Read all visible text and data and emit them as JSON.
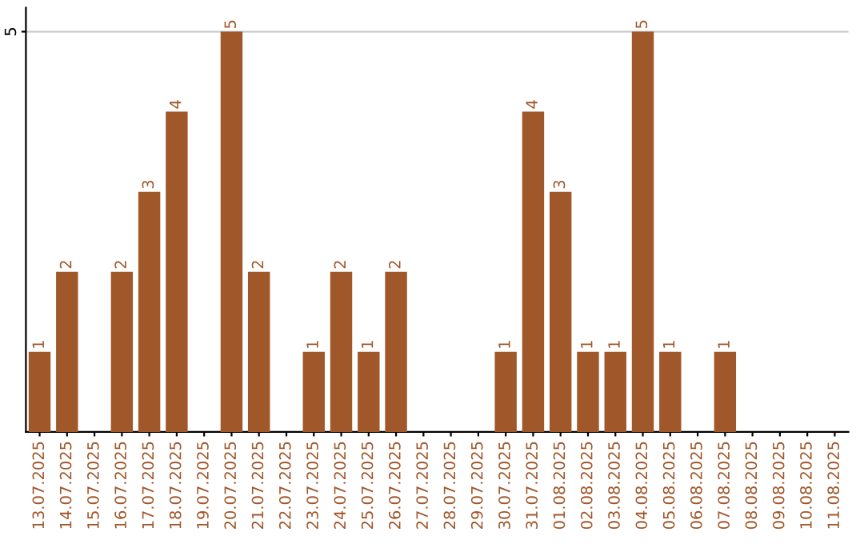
{
  "chart_data": {
    "type": "bar",
    "categories": [
      "13.07.2025",
      "14.07.2025",
      "15.07.2025",
      "16.07.2025",
      "17.07.2025",
      "18.07.2025",
      "19.07.2025",
      "20.07.2025",
      "21.07.2025",
      "22.07.2025",
      "23.07.2025",
      "24.07.2025",
      "25.07.2025",
      "26.07.2025",
      "27.07.2025",
      "28.07.2025",
      "29.07.2025",
      "30.07.2025",
      "31.07.2025",
      "01.08.2025",
      "02.08.2025",
      "03.08.2025",
      "04.08.2025",
      "05.08.2025",
      "06.08.2025",
      "07.08.2025",
      "08.08.2025",
      "09.08.2025",
      "10.08.2025",
      "11.08.2025"
    ],
    "values": [
      1,
      2,
      0,
      2,
      3,
      4,
      0,
      5,
      2,
      0,
      1,
      2,
      1,
      2,
      0,
      0,
      0,
      1,
      4,
      3,
      1,
      1,
      5,
      1,
      0,
      1,
      0,
      0,
      0,
      0
    ],
    "value_labels": [
      "1",
      "2",
      null,
      "2",
      "3",
      "4",
      null,
      "5",
      "2",
      null,
      "1",
      "2",
      "1",
      "2",
      null,
      null,
      null,
      "1",
      "4",
      "3",
      "1",
      "1",
      "5",
      "1",
      null,
      "1",
      null,
      null,
      null,
      null
    ],
    "color": "#a0572a",
    "ylim": [
      0,
      5.3
    ],
    "yticks": [
      5
    ],
    "grid": "y"
  }
}
